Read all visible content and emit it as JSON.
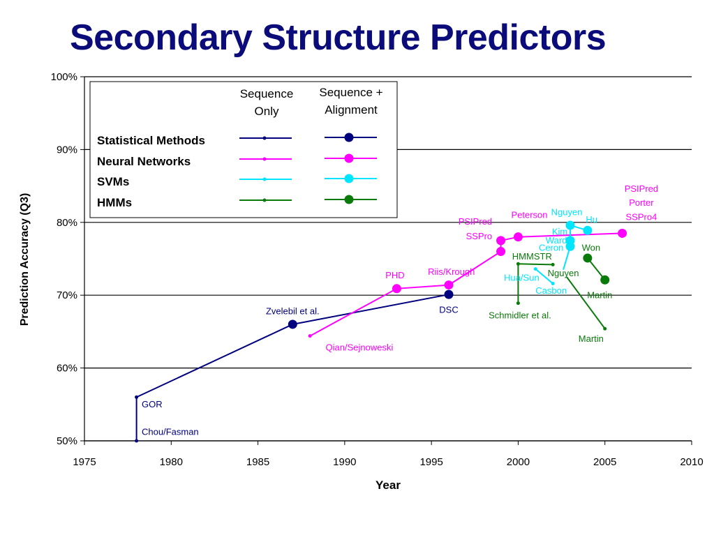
{
  "slide": {
    "title": "Secondary Structure Predictors"
  },
  "colors": {
    "statistical": "#00007f",
    "neural": "#ff00ff",
    "svm": "#00e5ff",
    "hmm": "#0a7a0a",
    "grid": "#000000"
  },
  "chart_data": {
    "type": "scatter",
    "xlabel": "Year",
    "ylabel": "Prediction Accuracy (Q3)",
    "xlim": [
      1975,
      2010
    ],
    "ylim": [
      50,
      100
    ],
    "xticks": [
      "1975",
      "1980",
      "1985",
      "1990",
      "1995",
      "2000",
      "2005",
      "2010"
    ],
    "yticks": [
      "50%",
      "60%",
      "70%",
      "80%",
      "90%",
      "100%"
    ],
    "grid": true,
    "legend": {
      "position": "top-left",
      "col_headers": [
        "Sequence Only",
        "Sequence + Alignment"
      ],
      "col_header_lines": [
        [
          "Sequence",
          "Only"
        ],
        [
          "Sequence +",
          "Alignment"
        ]
      ],
      "rows": [
        "Statistical Methods",
        "Neural Networks",
        "SVMs",
        "HMMs"
      ]
    },
    "series": [
      {
        "name": "Statistical Methods",
        "key": "statistical",
        "points": [
          {
            "x": 1978,
            "y": 50,
            "big": false
          },
          {
            "x": 1978,
            "y": 56,
            "big": false
          },
          {
            "x": 1987,
            "y": 66,
            "big": true
          },
          {
            "x": 1996,
            "y": 70.1,
            "big": true
          }
        ],
        "lines": [
          [
            [
              1978,
              50
            ],
            [
              1978,
              56
            ],
            [
              1987,
              66
            ],
            [
              1996,
              70.1
            ]
          ]
        ]
      },
      {
        "name": "Neural Networks",
        "key": "neural",
        "points": [
          {
            "x": 1988,
            "y": 64.4,
            "big": false
          },
          {
            "x": 1993,
            "y": 70.9,
            "big": true
          },
          {
            "x": 1996,
            "y": 71.4,
            "big": true
          },
          {
            "x": 1999,
            "y": 76,
            "big": true
          },
          {
            "x": 1999,
            "y": 77.5,
            "big": true
          },
          {
            "x": 2000,
            "y": 78,
            "big": true
          },
          {
            "x": 2006,
            "y": 78.5,
            "big": true
          }
        ],
        "lines": [
          [
            [
              1988,
              64.4
            ],
            [
              1993,
              70.9
            ],
            [
              1996,
              71.4
            ],
            [
              1999,
              76
            ],
            [
              1999,
              77.5
            ],
            [
              2000,
              78
            ],
            [
              2006,
              78.5
            ]
          ]
        ]
      },
      {
        "name": "SVMs",
        "key": "svm",
        "points": [
          {
            "x": 2001,
            "y": 73.6,
            "big": false
          },
          {
            "x": 2002,
            "y": 71.6,
            "big": false
          },
          {
            "x": 2003,
            "y": 76.7,
            "big": true
          },
          {
            "x": 2003,
            "y": 77.5,
            "big": true
          },
          {
            "x": 2003,
            "y": 79.6,
            "big": true
          },
          {
            "x": 2004,
            "y": 78.9,
            "big": true
          }
        ],
        "lines": [
          [
            [
              2001,
              73.6
            ],
            [
              2002,
              71.6
            ]
          ],
          [
            [
              2002.6,
              73.5
            ],
            [
              2003,
              76.7
            ],
            [
              2003,
              77.5
            ],
            [
              2003,
              79.6
            ],
            [
              2004,
              78.9
            ]
          ]
        ]
      },
      {
        "name": "HMMs",
        "key": "hmm",
        "points": [
          {
            "x": 2000,
            "y": 68.9,
            "big": false
          },
          {
            "x": 2000,
            "y": 74.3,
            "big": false
          },
          {
            "x": 2002,
            "y": 74.2,
            "big": false
          },
          {
            "x": 2005,
            "y": 65.4,
            "big": false
          },
          {
            "x": 2004,
            "y": 75.1,
            "big": true
          },
          {
            "x": 2005,
            "y": 72.1,
            "big": true
          }
        ],
        "lines": [
          [
            [
              2000,
              68.9
            ],
            [
              2000,
              74.3
            ],
            [
              2002,
              74.2
            ]
          ],
          [
            [
              2002.8,
              72.5
            ],
            [
              2005,
              65.4
            ]
          ],
          [
            [
              2004,
              75.1
            ],
            [
              2005,
              72.1
            ]
          ]
        ]
      }
    ],
    "annotations": [
      {
        "text": "GOR",
        "x": 1978.3,
        "y": 54.6,
        "key": "statistical",
        "anchor": "start"
      },
      {
        "text": "Chou/Fasman",
        "x": 1978.3,
        "y": 50.8,
        "key": "statistical",
        "anchor": "start"
      },
      {
        "text": "Zvelebil et al.",
        "x": 1987,
        "y": 67.4,
        "key": "statistical",
        "anchor": "middle"
      },
      {
        "text": "DSC",
        "x": 1996,
        "y": 67.6,
        "key": "statistical",
        "anchor": "middle"
      },
      {
        "text": "Qian/Sejnoweski",
        "x": 1988.9,
        "y": 62.4,
        "key": "neural",
        "anchor": "start"
      },
      {
        "text": "PHD",
        "x": 1992.9,
        "y": 72.3,
        "key": "neural",
        "anchor": "middle"
      },
      {
        "text": "Riis/Krough",
        "x": 1994.8,
        "y": 72.8,
        "key": "neural",
        "anchor": "start"
      },
      {
        "text": "PSIPred",
        "x": 1998.5,
        "y": 79.7,
        "key": "neural",
        "anchor": "end"
      },
      {
        "text": "SSPro",
        "x": 1998.5,
        "y": 77.7,
        "key": "neural",
        "anchor": "end"
      },
      {
        "text": "Peterson",
        "x": 1999.6,
        "y": 80.6,
        "key": "neural",
        "anchor": "start"
      },
      {
        "text": "PSIPred",
        "x": 2007.1,
        "y": 84.2,
        "key": "neural",
        "anchor": "middle"
      },
      {
        "text": "Porter",
        "x": 2007.1,
        "y": 82.3,
        "key": "neural",
        "anchor": "middle"
      },
      {
        "text": "SSPro4",
        "x": 2007.1,
        "y": 80.3,
        "key": "neural",
        "anchor": "middle"
      },
      {
        "text": "Nguyen",
        "x": 2002.8,
        "y": 81.0,
        "key": "svm",
        "anchor": "middle"
      },
      {
        "text": "Hu",
        "x": 2003.9,
        "y": 80.0,
        "key": "svm",
        "anchor": "start"
      },
      {
        "text": "Kim",
        "x": 2002.4,
        "y": 78.3,
        "key": "svm",
        "anchor": "middle"
      },
      {
        "text": "Ward",
        "x": 2002.2,
        "y": 77.1,
        "key": "svm",
        "anchor": "middle"
      },
      {
        "text": "Ceron",
        "x": 2001.9,
        "y": 76.1,
        "key": "svm",
        "anchor": "middle"
      },
      {
        "text": "Hua/Sun",
        "x": 2000.2,
        "y": 72.0,
        "key": "svm",
        "anchor": "middle"
      },
      {
        "text": "Casbon",
        "x": 2001.9,
        "y": 70.2,
        "key": "svm",
        "anchor": "middle"
      },
      {
        "text": "HMMSTR",
        "x": 2000.8,
        "y": 74.9,
        "key": "hmm",
        "anchor": "middle"
      },
      {
        "text": "Nguyen",
        "x": 2002.6,
        "y": 72.6,
        "key": "hmm",
        "anchor": "middle"
      },
      {
        "text": "Won",
        "x": 2004.2,
        "y": 76.1,
        "key": "hmm",
        "anchor": "middle"
      },
      {
        "text": "Martin",
        "x": 2004.7,
        "y": 69.6,
        "key": "hmm",
        "anchor": "middle"
      },
      {
        "text": "Schmidler et al.",
        "x": 2000.1,
        "y": 66.8,
        "key": "hmm",
        "anchor": "middle"
      },
      {
        "text": "Martin",
        "x": 2004.2,
        "y": 63.6,
        "key": "hmm",
        "anchor": "middle"
      }
    ]
  }
}
